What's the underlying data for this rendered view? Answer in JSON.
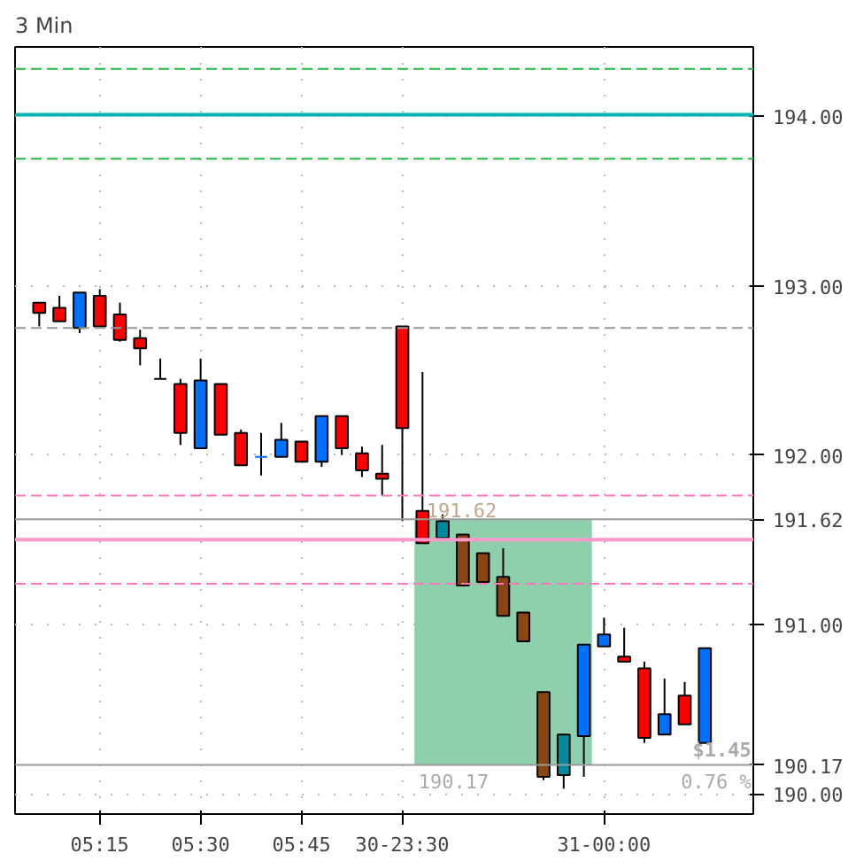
{
  "chart_data": {
    "type": "candlestick",
    "title": "3 Min",
    "categories": [
      null,
      null,
      null,
      "05:15",
      null,
      null,
      null,
      null,
      "05:30",
      null,
      null,
      null,
      null,
      "05:45",
      null,
      null,
      null,
      null,
      "30-23:30",
      null,
      null,
      null,
      null,
      null,
      null,
      null,
      null,
      null,
      "31-00:00",
      null,
      null,
      null,
      null,
      null
    ],
    "ohlc": [
      [
        192.9,
        192.9,
        192.76,
        192.84
      ],
      [
        192.87,
        192.94,
        192.79,
        192.79
      ],
      [
        192.75,
        192.96,
        192.72,
        192.96
      ],
      [
        192.94,
        192.98,
        192.76,
        192.76
      ],
      [
        192.83,
        192.9,
        192.67,
        192.68
      ],
      [
        192.69,
        192.74,
        192.53,
        192.63
      ],
      [
        192.45,
        192.57,
        192.45,
        192.45
      ],
      [
        192.42,
        192.45,
        192.06,
        192.13
      ],
      [
        192.04,
        192.57,
        192.04,
        192.44
      ],
      [
        192.42,
        192.42,
        192.12,
        192.12
      ],
      [
        192.13,
        192.15,
        191.94,
        191.94
      ],
      [
        191.99,
        192.13,
        191.88,
        191.99
      ],
      [
        191.99,
        192.19,
        191.99,
        192.09
      ],
      [
        192.08,
        192.08,
        191.96,
        191.96
      ],
      [
        191.96,
        192.23,
        191.93,
        192.23
      ],
      [
        192.23,
        192.23,
        192.0,
        192.04
      ],
      [
        192.01,
        192.05,
        191.87,
        191.91
      ],
      [
        191.89,
        192.06,
        191.76,
        191.86
      ],
      [
        192.76,
        192.76,
        191.61,
        192.16
      ],
      [
        191.67,
        192.49,
        191.48,
        191.48
      ],
      [
        191.51,
        191.65,
        191.51,
        191.61
      ],
      [
        191.53,
        191.53,
        191.23,
        191.23
      ],
      [
        191.42,
        191.42,
        191.25,
        191.25
      ],
      [
        191.28,
        191.45,
        191.05,
        191.05
      ],
      [
        191.07,
        191.07,
        190.9,
        190.9
      ],
      [
        190.6,
        190.6,
        190.08,
        190.1
      ],
      [
        190.11,
        190.35,
        190.03,
        190.35
      ],
      [
        190.34,
        190.88,
        190.1,
        190.88
      ],
      [
        190.87,
        191.04,
        190.87,
        190.94
      ],
      [
        190.81,
        190.98,
        190.78,
        190.78
      ],
      [
        190.74,
        190.78,
        190.3,
        190.33
      ],
      [
        190.35,
        190.68,
        190.35,
        190.47
      ],
      [
        190.58,
        190.66,
        190.41,
        190.41
      ],
      [
        190.3,
        190.86,
        190.3,
        190.86
      ]
    ],
    "colors": [
      "#ff0000",
      "#ff0000",
      "#0070ff",
      "#ff0000",
      "#ff0000",
      "#ff0000",
      "#000000",
      "#ff0000",
      "#0070ff",
      "#ff0000",
      "#ff0000",
      "#0070ff",
      "#0070ff",
      "#ff0000",
      "#0070ff",
      "#ff0000",
      "#ff0000",
      "#ff0000",
      "#ff0000",
      "#ff0000",
      "#00889c",
      "#8b4513",
      "#8b4513",
      "#8b4513",
      "#8b4513",
      "#8b4513",
      "#00889c",
      "#0070ff",
      "#0070ff",
      "#ff0000",
      "#ff0000",
      "#0070ff",
      "#ff0000",
      "#0070ff"
    ],
    "ylim": [
      189.88,
      194.41
    ],
    "yticks": [
      {
        "value": 190,
        "label": "190.00"
      },
      {
        "value": 191,
        "label": "191.00"
      },
      {
        "value": 192,
        "label": "192.00"
      },
      {
        "value": 193,
        "label": "193.00"
      },
      {
        "value": 194,
        "label": "194.00"
      }
    ],
    "ref_lines": [
      {
        "axis": "y",
        "value": 194.28,
        "color": "#22bb44",
        "line_style": "dashed"
      },
      {
        "axis": "y",
        "value": 194.01,
        "color": "#00b4b4",
        "line_style": "solid"
      },
      {
        "axis": "y",
        "value": 193.75,
        "color": "#22bb44",
        "line_style": "dashed"
      },
      {
        "axis": "y",
        "value": 192.75,
        "color": "#999999",
        "line_style": "dashed"
      },
      {
        "axis": "y",
        "value": 191.76,
        "color": "#ff77bb",
        "line_style": "dashed"
      },
      {
        "axis": "y",
        "value": 191.5,
        "color": "#ff99cc",
        "line_style": "solid"
      },
      {
        "axis": "y",
        "value": 191.24,
        "color": "#ff77bb",
        "line_style": "dashed"
      },
      {
        "axis": "y",
        "value": 191.62,
        "color": "#999999",
        "line_style": "solid",
        "label": "191.62"
      },
      {
        "axis": "y",
        "value": 190.17,
        "color": "#999999",
        "line_style": "solid",
        "label": "190.17"
      }
    ],
    "bands": [
      {
        "axis": "y",
        "from": 190.17,
        "to": 191.62,
        "color": "#88cca8"
      }
    ],
    "annotations": [
      "191.62",
      "190.17",
      "$1.45",
      "0.76 %"
    ],
    "grid": true
  }
}
